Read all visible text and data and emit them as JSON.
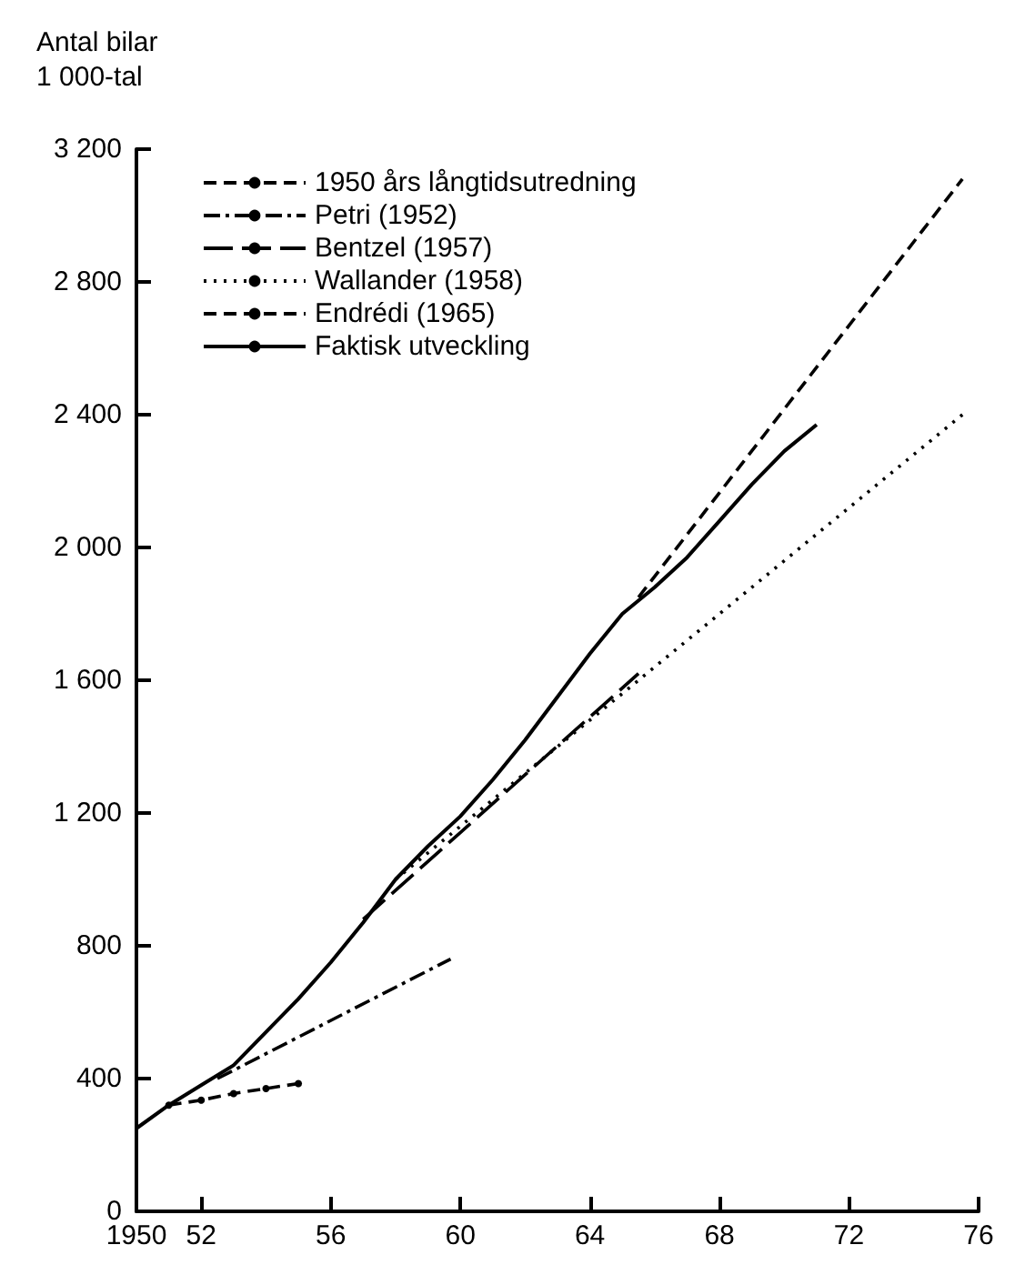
{
  "chart_data": {
    "type": "line",
    "ylabel": "Antal bilar\n1 000-tal",
    "xlim": [
      1950,
      1976
    ],
    "xticks": [
      1950,
      {
        "value": 1952,
        "label": "52"
      },
      {
        "value": 1956,
        "label": "56"
      },
      {
        "value": 1960,
        "label": "60"
      },
      {
        "value": 1964,
        "label": "64"
      },
      {
        "value": 1968,
        "label": "68"
      },
      {
        "value": 1972,
        "label": "72"
      },
      {
        "value": 1976,
        "label": "76"
      }
    ],
    "ylim": [
      0,
      3200
    ],
    "yticks": [
      0,
      400,
      800,
      {
        "value": 1200,
        "label": "1 200"
      },
      {
        "value": 1600,
        "label": "1 600"
      },
      {
        "value": 2000,
        "label": "2 000"
      },
      {
        "value": 2400,
        "label": "2 400"
      },
      {
        "value": 2800,
        "label": "2 800"
      },
      {
        "value": 3200,
        "label": "3 200"
      }
    ],
    "grid": false,
    "legend": "top left",
    "marker": "none",
    "series": [
      {
        "name": "1950 års långtidsutredning",
        "color": "#000000",
        "line_style": "dashed",
        "marker": "circle",
        "x": [
          1951,
          1952,
          1953,
          1954,
          1955
        ],
        "values": [
          320,
          335,
          355,
          370,
          385
        ]
      },
      {
        "name": "Petri (1952)",
        "color": "#000000",
        "line_style": "dashdot",
        "x": [
          1952.5,
          1959.7
        ],
        "values": [
          400,
          760
        ]
      },
      {
        "name": "Bentzel (1957)",
        "color": "#000000",
        "line_style": "longdash",
        "x": [
          1957,
          1965.5
        ],
        "values": [
          880,
          1620
        ]
      },
      {
        "name": "Wallander (1958)",
        "color": "#000000",
        "line_style": "dotted",
        "x": [
          1958,
          1975.5
        ],
        "values": [
          1000,
          2400
        ]
      },
      {
        "name": "Endrédi (1965)",
        "color": "#000000",
        "line_style": "dashed",
        "x": [
          1965.5,
          1975.5
        ],
        "values": [
          1850,
          3110
        ]
      },
      {
        "name": "Faktisk utveckling",
        "color": "#000000",
        "line_style": "solid",
        "x": [
          1950,
          1951,
          1952,
          1953,
          1954,
          1955,
          1956,
          1957,
          1958,
          1959,
          1960,
          1961,
          1962,
          1963,
          1964,
          1965,
          1966,
          1967,
          1968,
          1969,
          1970,
          1971
        ],
        "values": [
          250,
          320,
          380,
          440,
          540,
          640,
          750,
          870,
          1000,
          1100,
          1190,
          1300,
          1420,
          1550,
          1680,
          1800,
          1880,
          1970,
          2080,
          2190,
          2290,
          2370
        ]
      }
    ]
  }
}
